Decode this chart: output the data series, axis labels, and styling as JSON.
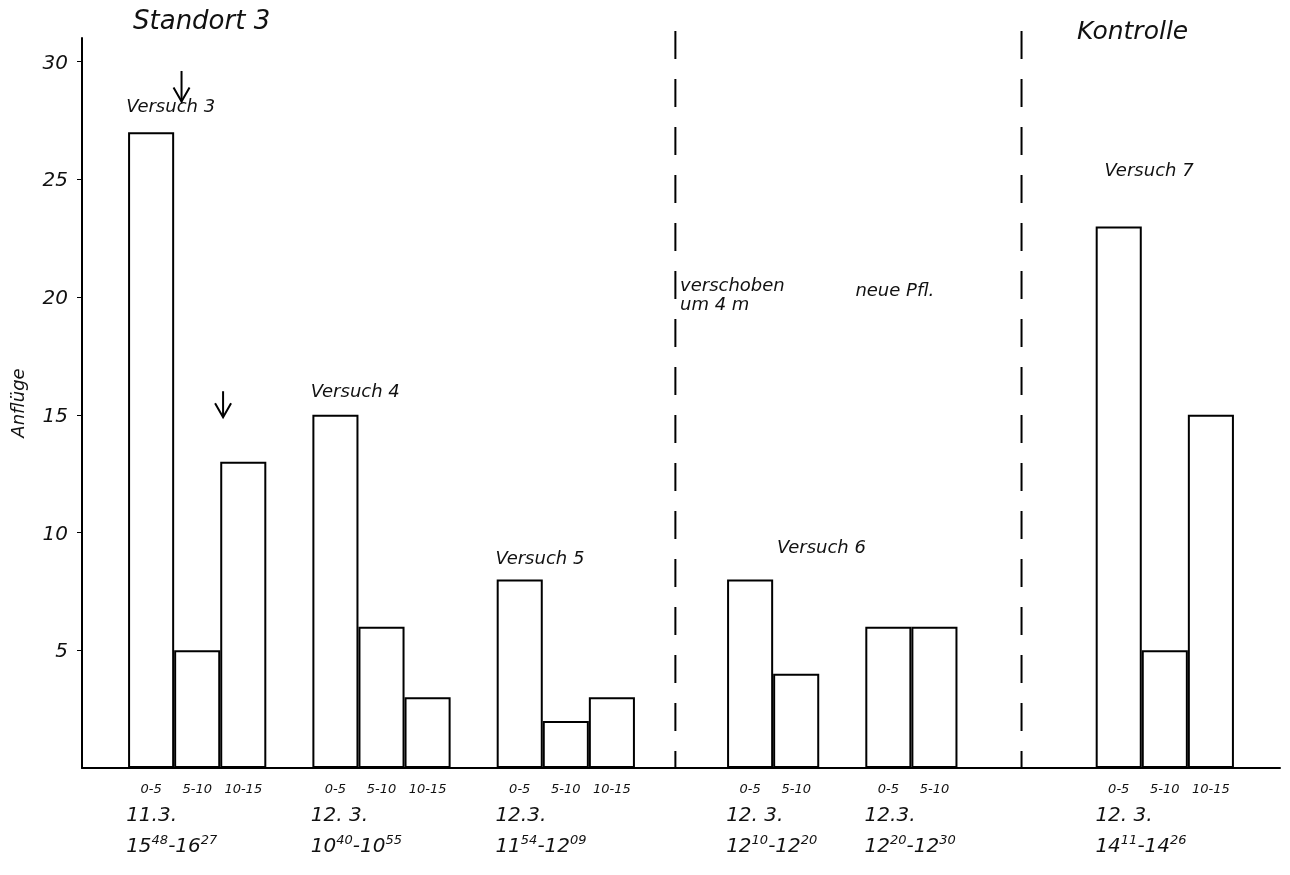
{
  "chart_data": {
    "type": "bar",
    "title": "Standort 3",
    "ylabel": "Anflüge",
    "categories": [
      null,
      "0-5",
      "5-10",
      "10-15",
      null,
      "0-5",
      "5-10",
      "10-15",
      null,
      "0-5",
      "5-10",
      "10-15",
      null,
      null,
      "0-5",
      "5-10",
      null,
      "0-5",
      "5-10",
      null,
      null,
      null,
      "0-5",
      "5-10",
      "10-15",
      null
    ],
    "values": [
      null,
      27,
      5,
      13,
      null,
      15,
      6,
      3,
      null,
      8,
      2,
      3,
      null,
      null,
      8,
      4,
      null,
      6,
      6,
      null,
      null,
      null,
      23,
      5,
      15,
      null
    ],
    "color": "#ffffff",
    "ylim": [
      0,
      31
    ],
    "yticks": [
      5,
      10,
      15,
      20,
      25,
      30
    ],
    "annotations": [
      "Kontrolle",
      "Versuch 3",
      "Versuch 4",
      "Versuch 5",
      "verschoben\num 4 m",
      "neue Pfl.",
      "Versuch 6",
      "Versuch 7",
      "11.3.\n15$^{48}$-16$^{27}$",
      "12. 3.\n10$^{40}$-10$^{55}$",
      "12.3.\n11$^{54}$-12$^{09}$",
      "12. 3.\n12$^{10}$-12$^{20}$",
      "12.3.\n12$^{20}$-12$^{30}$",
      "12. 3.\n14$^{11}$-14$^{26}$"
    ]
  }
}
